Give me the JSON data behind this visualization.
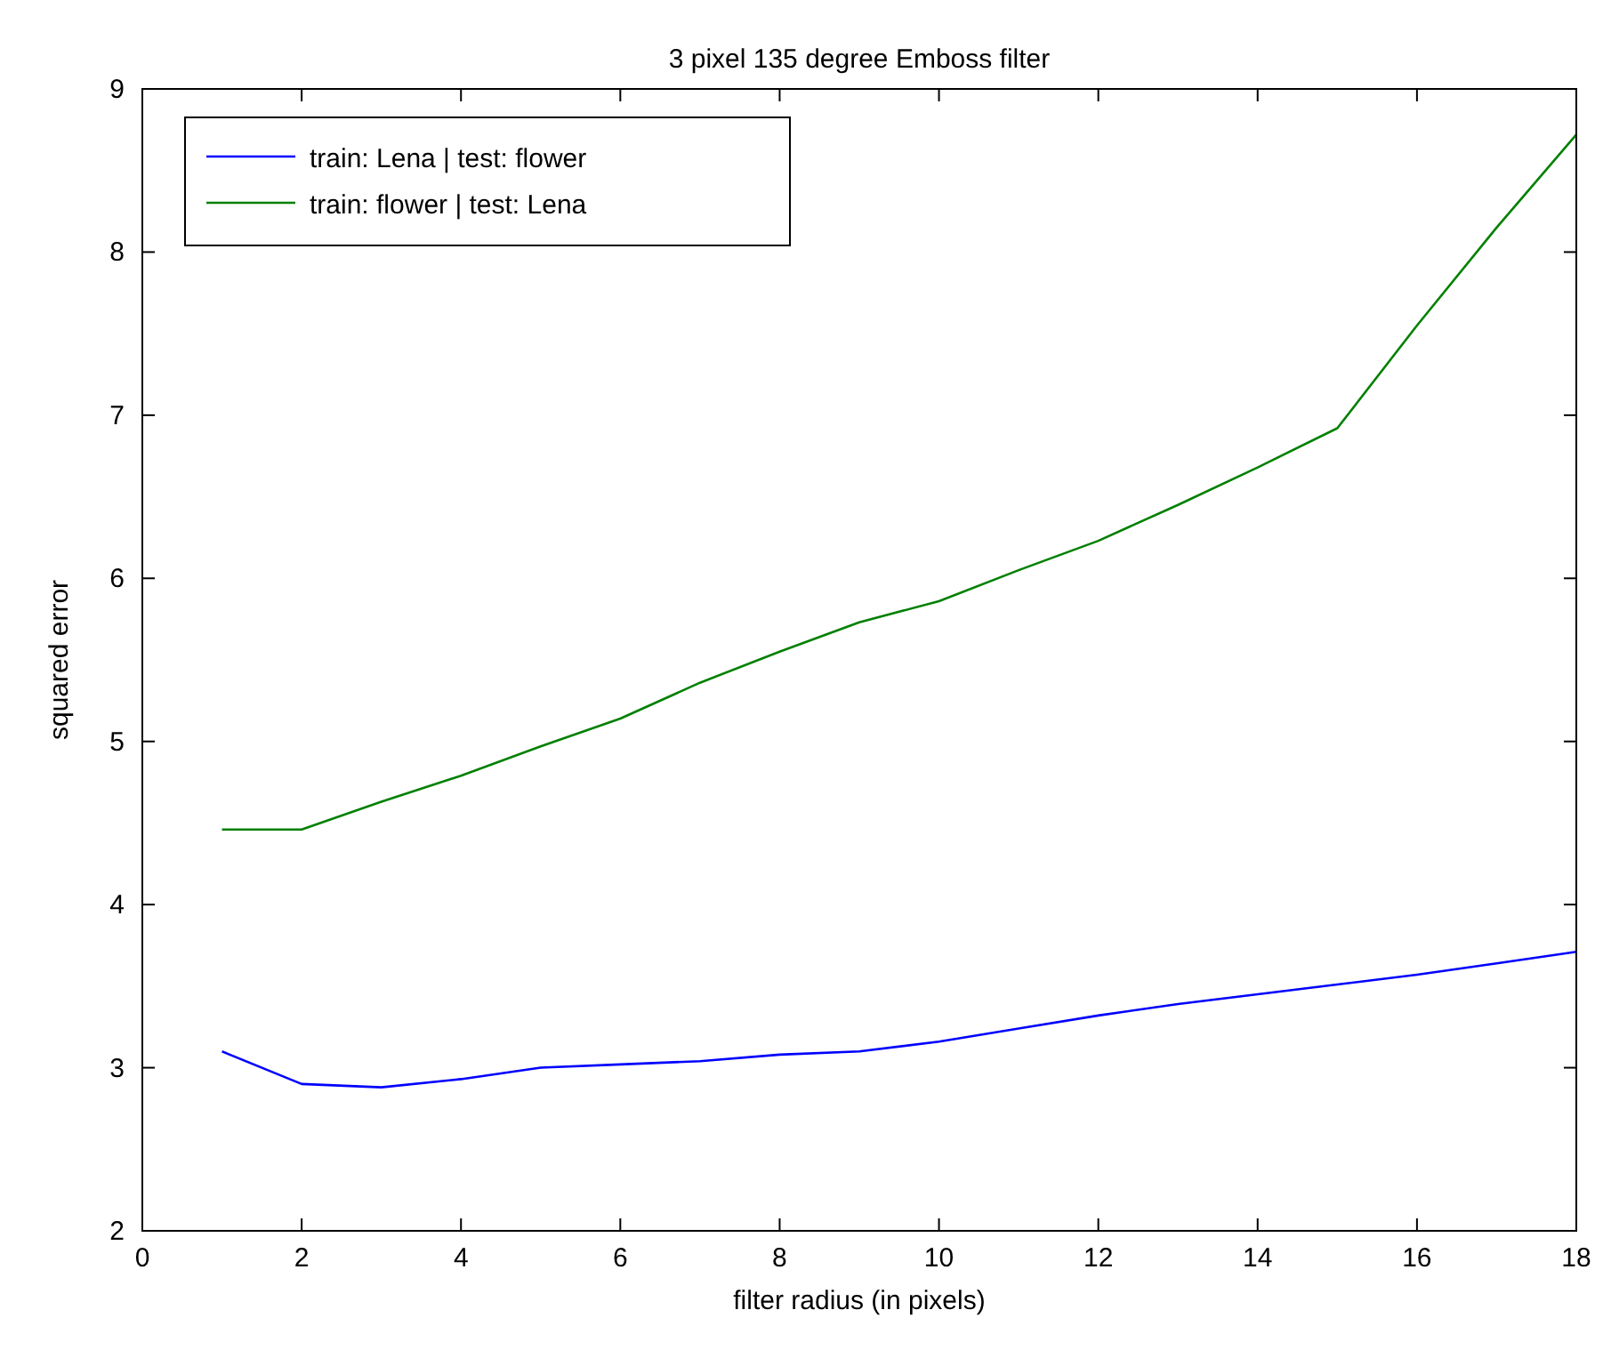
{
  "chart_data": {
    "type": "line",
    "title": "3 pixel 135 degree Emboss filter",
    "xlabel": "filter radius (in pixels)",
    "ylabel": "squared error",
    "x": [
      1,
      2,
      3,
      4,
      5,
      6,
      7,
      8,
      9,
      10,
      11,
      12,
      13,
      14,
      15,
      16,
      17,
      18
    ],
    "series": [
      {
        "name": "train: Lena | test: flower",
        "color": "#0000ff",
        "values": [
          3.1,
          2.9,
          2.88,
          2.93,
          3.0,
          3.02,
          3.04,
          3.08,
          3.1,
          3.16,
          3.24,
          3.32,
          3.39,
          3.45,
          3.51,
          3.57,
          3.64,
          3.71
        ]
      },
      {
        "name": "train: flower | test: Lena",
        "color": "#008000",
        "values": [
          4.46,
          4.46,
          4.63,
          4.79,
          4.97,
          5.14,
          5.36,
          5.55,
          5.73,
          5.86,
          6.05,
          6.23,
          6.45,
          6.68,
          6.92,
          7.55,
          8.15,
          8.72
        ]
      }
    ],
    "xlim": [
      0,
      18
    ],
    "xticks": [
      0,
      2,
      4,
      6,
      8,
      10,
      12,
      14,
      16,
      18
    ],
    "ylim": [
      2,
      9
    ],
    "yticks": [
      2,
      3,
      4,
      5,
      6,
      7,
      8,
      9
    ],
    "grid": false,
    "legend": "top left",
    "marker": "none",
    "line_style": "solid"
  }
}
